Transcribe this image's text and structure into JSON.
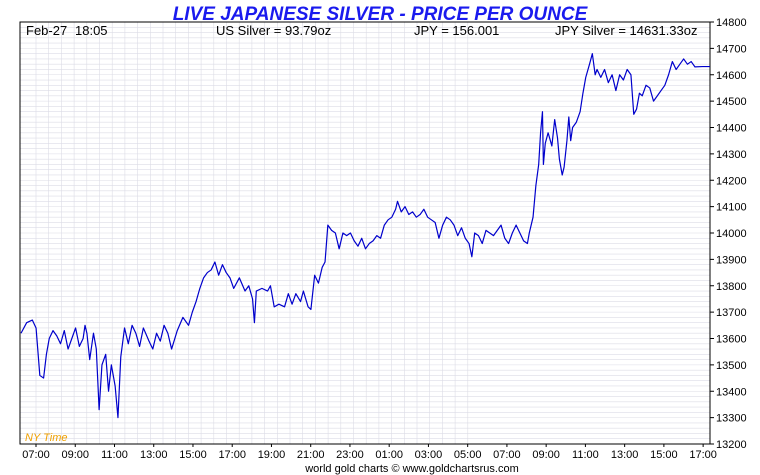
{
  "chart_data": {
    "type": "line",
    "title": "LIVE JAPANESE SILVER - PRICE PER OUNCE",
    "info": {
      "date": "Feb-27",
      "time": "18:05",
      "us_silver": "US Silver = 93.79oz",
      "jpy_rate": "JPY = 156.001",
      "jpy_silver": "JPY Silver = 14631.33oz"
    },
    "timezone_label": "NY Time",
    "footer": "world gold charts © www.goldchartsrus.com",
    "x_tick_labels": [
      "07:00",
      "09:00",
      "11:00",
      "13:00",
      "15:00",
      "17:00",
      "19:00",
      "21:00",
      "23:00",
      "01:00",
      "03:00",
      "05:00",
      "07:00",
      "09:00",
      "11:00",
      "13:00",
      "15:00",
      "17:00"
    ],
    "x_range_hours": [
      0,
      34.5
    ],
    "ylim": [
      13200,
      14800
    ],
    "y_ticks": [
      13200,
      13300,
      13400,
      13500,
      13600,
      13700,
      13800,
      13900,
      14000,
      14100,
      14200,
      14300,
      14400,
      14500,
      14600,
      14700,
      14800
    ],
    "grid": true,
    "colors": {
      "line": "#0000cc",
      "title": "#1a1aee",
      "grid": "#dcdce6",
      "timezone": "#f0a000"
    },
    "series": [
      {
        "points": [
          [
            0,
            13620
          ],
          [
            0.3,
            13660
          ],
          [
            0.6,
            13670
          ],
          [
            0.8,
            13640
          ],
          [
            1.0,
            13460
          ],
          [
            1.2,
            13450
          ],
          [
            1.35,
            13540
          ],
          [
            1.5,
            13600
          ],
          [
            1.7,
            13630
          ],
          [
            1.9,
            13610
          ],
          [
            2.1,
            13580
          ],
          [
            2.3,
            13630
          ],
          [
            2.5,
            13560
          ],
          [
            2.7,
            13600
          ],
          [
            2.9,
            13640
          ],
          [
            3.1,
            13570
          ],
          [
            3.3,
            13600
          ],
          [
            3.4,
            13650
          ],
          [
            3.5,
            13620
          ],
          [
            3.65,
            13520
          ],
          [
            3.75,
            13570
          ],
          [
            3.85,
            13620
          ],
          [
            4.0,
            13560
          ],
          [
            4.15,
            13330
          ],
          [
            4.3,
            13500
          ],
          [
            4.5,
            13540
          ],
          [
            4.65,
            13400
          ],
          [
            4.8,
            13500
          ],
          [
            5.0,
            13420
          ],
          [
            5.15,
            13300
          ],
          [
            5.3,
            13530
          ],
          [
            5.5,
            13640
          ],
          [
            5.7,
            13580
          ],
          [
            5.9,
            13650
          ],
          [
            6.1,
            13620
          ],
          [
            6.3,
            13570
          ],
          [
            6.5,
            13640
          ],
          [
            6.8,
            13590
          ],
          [
            7.0,
            13560
          ],
          [
            7.2,
            13620
          ],
          [
            7.4,
            13590
          ],
          [
            7.6,
            13650
          ],
          [
            7.8,
            13620
          ],
          [
            8.0,
            13560
          ],
          [
            8.3,
            13630
          ],
          [
            8.6,
            13680
          ],
          [
            8.9,
            13650
          ],
          [
            9.1,
            13700
          ],
          [
            9.3,
            13740
          ],
          [
            9.5,
            13790
          ],
          [
            9.7,
            13830
          ],
          [
            9.9,
            13850
          ],
          [
            10.1,
            13860
          ],
          [
            10.3,
            13890
          ],
          [
            10.5,
            13840
          ],
          [
            10.7,
            13880
          ],
          [
            10.9,
            13850
          ],
          [
            11.1,
            13830
          ],
          [
            11.3,
            13790
          ],
          [
            11.6,
            13830
          ],
          [
            11.9,
            13780
          ],
          [
            12.1,
            13800
          ],
          [
            12.3,
            13750
          ],
          [
            12.4,
            13660
          ],
          [
            12.5,
            13780
          ],
          [
            12.8,
            13790
          ],
          [
            13.1,
            13780
          ],
          [
            13.25,
            13800
          ],
          [
            13.35,
            13760
          ],
          [
            13.45,
            13720
          ],
          [
            13.7,
            13730
          ],
          [
            14.0,
            13720
          ],
          [
            14.2,
            13770
          ],
          [
            14.4,
            13730
          ],
          [
            14.6,
            13770
          ],
          [
            14.85,
            13740
          ],
          [
            15.0,
            13780
          ],
          [
            15.25,
            13720
          ],
          [
            15.4,
            13710
          ],
          [
            15.6,
            13840
          ],
          [
            15.8,
            13810
          ],
          [
            16.0,
            13870
          ],
          [
            16.15,
            13890
          ],
          [
            16.3,
            14030
          ],
          [
            16.5,
            14010
          ],
          [
            16.7,
            14000
          ],
          [
            16.9,
            13940
          ],
          [
            17.1,
            14000
          ],
          [
            17.3,
            13990
          ],
          [
            17.5,
            14000
          ],
          [
            17.7,
            13970
          ],
          [
            17.9,
            13950
          ],
          [
            18.1,
            13980
          ],
          [
            18.3,
            13940
          ],
          [
            18.5,
            13960
          ],
          [
            18.7,
            13970
          ],
          [
            18.9,
            13990
          ],
          [
            19.1,
            13980
          ],
          [
            19.3,
            14030
          ],
          [
            19.5,
            14050
          ],
          [
            19.7,
            14060
          ],
          [
            19.9,
            14090
          ],
          [
            20.0,
            14120
          ],
          [
            20.2,
            14080
          ],
          [
            20.4,
            14100
          ],
          [
            20.6,
            14070
          ],
          [
            20.8,
            14080
          ],
          [
            21.0,
            14060
          ],
          [
            21.2,
            14070
          ],
          [
            21.4,
            14090
          ],
          [
            21.6,
            14060
          ],
          [
            21.8,
            14050
          ],
          [
            22.0,
            14040
          ],
          [
            22.2,
            13980
          ],
          [
            22.4,
            14030
          ],
          [
            22.6,
            14060
          ],
          [
            22.8,
            14050
          ],
          [
            23.0,
            14030
          ],
          [
            23.2,
            13990
          ],
          [
            23.4,
            14020
          ],
          [
            23.6,
            13980
          ],
          [
            23.8,
            13960
          ],
          [
            23.95,
            13910
          ],
          [
            24.1,
            14000
          ],
          [
            24.3,
            13990
          ],
          [
            24.5,
            13960
          ],
          [
            24.7,
            14010
          ],
          [
            24.9,
            14000
          ],
          [
            25.1,
            13990
          ],
          [
            25.3,
            14010
          ],
          [
            25.5,
            14030
          ],
          [
            25.7,
            13980
          ],
          [
            25.9,
            13960
          ],
          [
            26.1,
            14000
          ],
          [
            26.3,
            14030
          ],
          [
            26.5,
            14000
          ],
          [
            26.7,
            13970
          ],
          [
            26.9,
            13960
          ],
          [
            27.0,
            14000
          ],
          [
            27.2,
            14060
          ],
          [
            27.35,
            14180
          ],
          [
            27.5,
            14260
          ],
          [
            27.6,
            14380
          ],
          [
            27.7,
            14460
          ],
          [
            27.75,
            14260
          ],
          [
            27.85,
            14340
          ],
          [
            28.0,
            14380
          ],
          [
            28.2,
            14330
          ],
          [
            28.35,
            14430
          ],
          [
            28.5,
            14360
          ],
          [
            28.6,
            14280
          ],
          [
            28.75,
            14220
          ],
          [
            28.85,
            14250
          ],
          [
            29.0,
            14350
          ],
          [
            29.1,
            14440
          ],
          [
            29.2,
            14350
          ],
          [
            29.3,
            14400
          ],
          [
            29.5,
            14420
          ],
          [
            29.7,
            14460
          ],
          [
            29.85,
            14530
          ],
          [
            30.0,
            14590
          ],
          [
            30.2,
            14640
          ],
          [
            30.35,
            14680
          ],
          [
            30.5,
            14600
          ],
          [
            30.6,
            14620
          ],
          [
            30.8,
            14590
          ],
          [
            31.0,
            14620
          ],
          [
            31.2,
            14570
          ],
          [
            31.4,
            14600
          ],
          [
            31.6,
            14540
          ],
          [
            31.8,
            14600
          ],
          [
            32.0,
            14580
          ],
          [
            32.2,
            14620
          ],
          [
            32.4,
            14600
          ],
          [
            32.55,
            14450
          ],
          [
            32.7,
            14470
          ],
          [
            32.85,
            14530
          ],
          [
            33.0,
            14520
          ],
          [
            33.2,
            14560
          ],
          [
            33.4,
            14550
          ],
          [
            33.6,
            14500
          ],
          [
            33.8,
            14520
          ],
          [
            34.0,
            14540
          ],
          [
            34.2,
            14560
          ],
          [
            34.4,
            14600
          ],
          [
            34.6,
            14650
          ],
          [
            34.8,
            14620
          ],
          [
            35.0,
            14640
          ],
          [
            35.2,
            14660
          ],
          [
            35.4,
            14640
          ],
          [
            35.6,
            14650
          ],
          [
            35.8,
            14630
          ],
          [
            36.2,
            14631
          ],
          [
            36.6,
            14631
          ]
        ]
      }
    ]
  }
}
